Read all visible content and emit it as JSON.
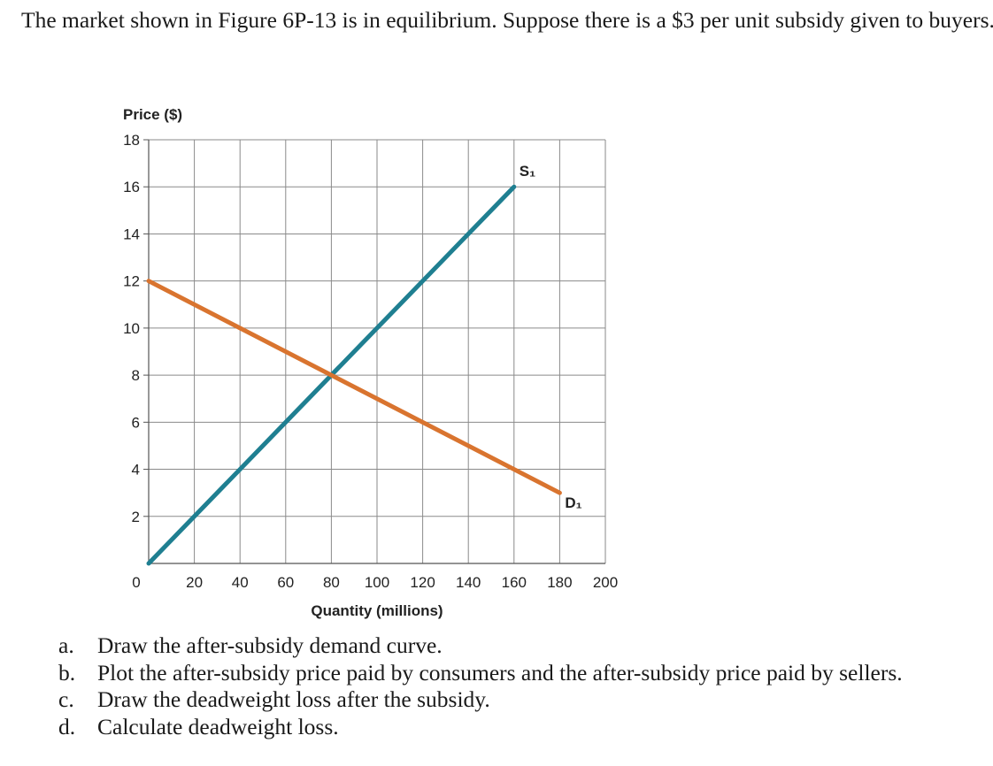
{
  "problem": {
    "prompt": "The market shown in Figure 6P-13 is in equilibrium. Suppose there is a $3 per unit subsidy given to buyers.",
    "questions": [
      {
        "label": "a.",
        "text": "Draw the after-subsidy demand curve."
      },
      {
        "label": "b.",
        "text": "Plot the after-subsidy price paid by consumers and the after-subsidy price paid by sellers."
      },
      {
        "label": "c.",
        "text": "Draw the deadweight loss after the subsidy."
      },
      {
        "label": "d.",
        "text": "Calculate deadweight loss."
      }
    ]
  },
  "chart_data": {
    "type": "line",
    "ylabel": "Price ($)",
    "xlabel": "Quantity (millions)",
    "xlim": [
      0,
      200
    ],
    "ylim": [
      0,
      18
    ],
    "x_ticks": [
      0,
      20,
      40,
      60,
      80,
      100,
      120,
      140,
      160,
      180,
      200
    ],
    "y_ticks": [
      2,
      4,
      6,
      8,
      10,
      12,
      14,
      16,
      18
    ],
    "y_zero_label": "0",
    "grid": true,
    "series": [
      {
        "name": "S₁",
        "color": "#1f7f91",
        "points": [
          [
            0,
            0
          ],
          [
            160,
            16
          ]
        ]
      },
      {
        "name": "D₁",
        "color": "#d9742f",
        "points": [
          [
            0,
            12
          ],
          [
            180,
            3
          ]
        ]
      }
    ]
  }
}
